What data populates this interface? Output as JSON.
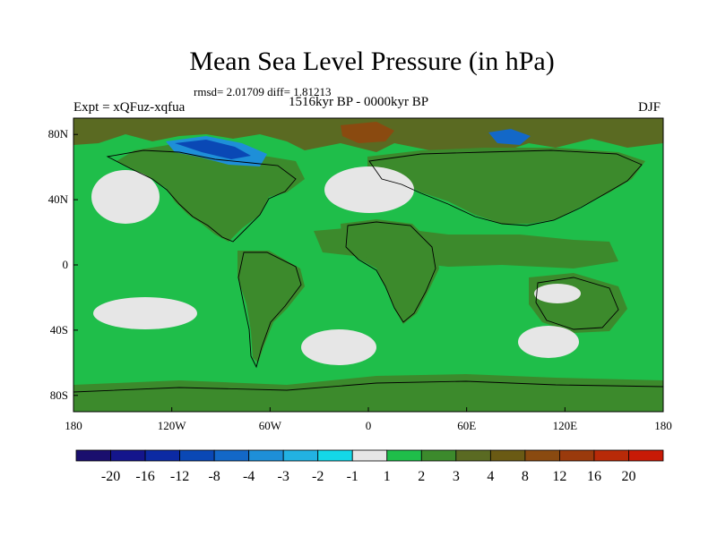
{
  "chart_data": {
    "type": "heatmap",
    "title": "Mean Sea Level Pressure (in hPa)",
    "stats_text": "rmsd= 2.01709 diff= 1.81213",
    "period_text": "1516kyr BP - 0000kyr BP",
    "experiment_text": "Expt = xQFuz-xqfua",
    "season_text": "DJF",
    "x_range": [
      -180,
      180
    ],
    "y_range": [
      -90,
      90
    ],
    "x_ticks": [
      {
        "value": -180,
        "label": "180"
      },
      {
        "value": -120,
        "label": "120W"
      },
      {
        "value": -60,
        "label": "60W"
      },
      {
        "value": 0,
        "label": "0"
      },
      {
        "value": 60,
        "label": "60E"
      },
      {
        "value": 120,
        "label": "120E"
      },
      {
        "value": 180,
        "label": "180"
      }
    ],
    "y_ticks": [
      {
        "value": 80,
        "label": "80N"
      },
      {
        "value": 40,
        "label": "40N"
      },
      {
        "value": 0,
        "label": "0"
      },
      {
        "value": -40,
        "label": "40S"
      },
      {
        "value": -80,
        "label": "80S"
      }
    ],
    "colorbar": {
      "levels": [
        "-20",
        "-16",
        "-12",
        "-8",
        "-4",
        "-3",
        "-2",
        "-1",
        "1",
        "2",
        "3",
        "4",
        "8",
        "12",
        "16",
        "20"
      ],
      "colors": [
        "#1a0f6e",
        "#14158c",
        "#0c2aa3",
        "#0a48b5",
        "#1368c8",
        "#1e8fd8",
        "#22b2e2",
        "#14d8e8",
        "#e6e6e6",
        "#1fbe4a",
        "#3c8a2c",
        "#5a6a22",
        "#6a5a14",
        "#8a4a10",
        "#9a3a0c",
        "#b82a08",
        "#c81a06"
      ]
    },
    "regions": [
      {
        "name": "background positive 1 to 2",
        "level_index": 9
      },
      {
        "name": "tropical and continental 2 to 3",
        "level_index": 10
      },
      {
        "name": "arctic 3 to 4",
        "level_index": 11
      },
      {
        "name": "north atlantic near zero",
        "level_index": 8
      },
      {
        "name": "north pacific near zero",
        "level_index": 8
      },
      {
        "name": "south pacific near zero",
        "level_index": 8
      },
      {
        "name": "south atlantic near zero",
        "level_index": 8
      },
      {
        "name": "south indian near zero",
        "level_index": 8
      },
      {
        "name": "australia near zero",
        "level_index": 8
      },
      {
        "name": "canadian arctic negative",
        "level_index": 3
      },
      {
        "name": "east siberia negative",
        "level_index": 4
      },
      {
        "name": "arctic ocean 8 to 12",
        "level_index": 13
      }
    ]
  }
}
